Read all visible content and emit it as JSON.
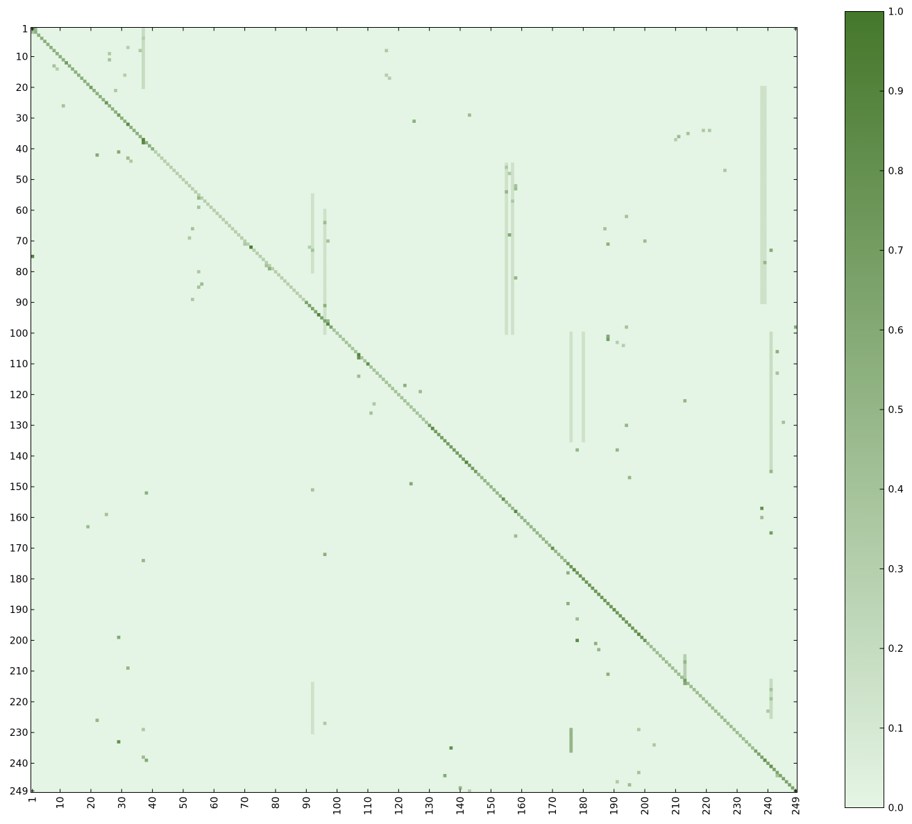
{
  "chart_data": {
    "type": "heatmap",
    "title": "",
    "xlabel": "",
    "ylabel": "",
    "n": 249,
    "x_ticks": [
      1,
      10,
      20,
      30,
      40,
      50,
      60,
      70,
      80,
      90,
      100,
      110,
      120,
      130,
      140,
      150,
      160,
      170,
      180,
      190,
      200,
      210,
      220,
      230,
      240,
      249
    ],
    "y_ticks": [
      1,
      10,
      20,
      30,
      40,
      50,
      60,
      70,
      80,
      90,
      100,
      110,
      120,
      130,
      140,
      150,
      160,
      170,
      180,
      190,
      200,
      210,
      220,
      230,
      240,
      249
    ],
    "x_tick_labels": [
      "1",
      "10",
      "20",
      "30",
      "40",
      "50",
      "60",
      "70",
      "80",
      "90",
      "100",
      "110",
      "120",
      "130",
      "140",
      "150",
      "160",
      "170",
      "180",
      "190",
      "200",
      "210",
      "220",
      "230",
      "240",
      "249"
    ],
    "y_tick_labels": [
      "1",
      "10",
      "20",
      "30",
      "40",
      "50",
      "60",
      "70",
      "80",
      "90",
      "100",
      "110",
      "120",
      "130",
      "140",
      "150",
      "160",
      "170",
      "180",
      "190",
      "200",
      "210",
      "220",
      "230",
      "240",
      "249"
    ],
    "colorbar": {
      "min": 0.0,
      "max": 1.0,
      "ticks": [
        0.0,
        0.1,
        0.2,
        0.3,
        0.4,
        0.5,
        0.6,
        0.7,
        0.8,
        0.9,
        1.0
      ],
      "tick_labels": [
        "0.0",
        "0.1",
        "0.2",
        "0.3",
        "0.4",
        "0.5",
        "0.6",
        "0.7",
        "0.8",
        "0.9",
        "1.0"
      ],
      "color_low": "#e5f5e5",
      "color_high": "#44772a"
    },
    "diagonal": [
      {
        "from": 1,
        "to": 40,
        "value": 0.55
      },
      {
        "from": 41,
        "to": 89,
        "value": 0.3
      },
      {
        "from": 90,
        "to": 98,
        "value": 0.65
      },
      {
        "from": 99,
        "to": 129,
        "value": 0.4
      },
      {
        "from": 130,
        "to": 145,
        "value": 0.7
      },
      {
        "from": 146,
        "to": 174,
        "value": 0.5
      },
      {
        "from": 175,
        "to": 200,
        "value": 0.75
      },
      {
        "from": 201,
        "to": 235,
        "value": 0.45
      },
      {
        "from": 236,
        "to": 249,
        "value": 0.65
      }
    ],
    "cells": [
      [
        1,
        2,
        0.5
      ],
      [
        2,
        1,
        0.4
      ],
      [
        12,
        12,
        0.7
      ],
      [
        20,
        20,
        0.7
      ],
      [
        25,
        25,
        0.75
      ],
      [
        29,
        29,
        0.7
      ],
      [
        32,
        32,
        0.85
      ],
      [
        37,
        37,
        0.9
      ],
      [
        38,
        37,
        0.85
      ],
      [
        72,
        72,
        0.95
      ],
      [
        75,
        1,
        0.9
      ],
      [
        94,
        94,
        0.9
      ],
      [
        97,
        97,
        0.85
      ],
      [
        107,
        107,
        0.9
      ],
      [
        108,
        107,
        0.8
      ],
      [
        110,
        110,
        0.8
      ],
      [
        131,
        131,
        0.85
      ],
      [
        142,
        142,
        0.9
      ],
      [
        154,
        154,
        0.8
      ],
      [
        158,
        158,
        0.85
      ],
      [
        170,
        170,
        0.8
      ],
      [
        177,
        177,
        0.85
      ],
      [
        190,
        190,
        0.8
      ],
      [
        198,
        198,
        0.85
      ],
      [
        213,
        213,
        0.7
      ],
      [
        239,
        239,
        0.8
      ],
      [
        241,
        241,
        0.8
      ],
      [
        11,
        26,
        0.4
      ],
      [
        26,
        11,
        0.4
      ],
      [
        21,
        28,
        0.35
      ],
      [
        42,
        22,
        0.6
      ],
      [
        41,
        29,
        0.6
      ],
      [
        43,
        32,
        0.45
      ],
      [
        44,
        33,
        0.35
      ],
      [
        31,
        125,
        0.55
      ],
      [
        29,
        143,
        0.45
      ],
      [
        36,
        211,
        0.45
      ],
      [
        34,
        219,
        0.35
      ],
      [
        34,
        221,
        0.35
      ],
      [
        37,
        210,
        0.3
      ],
      [
        72,
        91,
        0.3
      ],
      [
        73,
        92,
        0.4
      ],
      [
        64,
        96,
        0.45
      ],
      [
        70,
        97,
        0.4
      ],
      [
        91,
        96,
        0.55
      ],
      [
        96,
        97,
        0.5
      ],
      [
        102,
        188,
        0.7
      ],
      [
        101,
        188,
        0.6
      ],
      [
        98,
        194,
        0.4
      ],
      [
        114,
        107,
        0.45
      ],
      [
        126,
        111,
        0.4
      ],
      [
        123,
        112,
        0.35
      ],
      [
        119,
        127,
        0.45
      ],
      [
        117,
        122,
        0.55
      ],
      [
        149,
        124,
        0.6
      ],
      [
        152,
        38,
        0.55
      ],
      [
        151,
        92,
        0.4
      ],
      [
        54,
        155,
        0.5
      ],
      [
        68,
        156,
        0.6
      ],
      [
        53,
        158,
        0.45
      ],
      [
        82,
        158,
        0.5
      ],
      [
        166,
        158,
        0.45
      ],
      [
        157,
        238,
        0.8
      ],
      [
        165,
        241,
        0.7
      ],
      [
        160,
        238,
        0.45
      ],
      [
        172,
        96,
        0.55
      ],
      [
        174,
        37,
        0.5
      ],
      [
        163,
        19,
        0.45
      ],
      [
        159,
        25,
        0.4
      ],
      [
        199,
        29,
        0.6
      ],
      [
        209,
        32,
        0.5
      ],
      [
        233,
        29,
        0.8
      ],
      [
        235,
        137,
        0.8
      ],
      [
        244,
        135,
        0.6
      ],
      [
        248,
        140,
        0.5
      ],
      [
        226,
        22,
        0.5
      ],
      [
        239,
        38,
        0.6
      ],
      [
        238,
        37,
        0.45
      ],
      [
        200,
        178,
        0.85
      ],
      [
        201,
        184,
        0.55
      ],
      [
        203,
        185,
        0.5
      ],
      [
        211,
        188,
        0.55
      ],
      [
        207,
        213,
        0.5
      ],
      [
        214,
        213,
        0.6
      ],
      [
        122,
        213,
        0.5
      ],
      [
        138,
        178,
        0.5
      ],
      [
        138,
        191,
        0.5
      ],
      [
        130,
        194,
        0.5
      ],
      [
        147,
        195,
        0.5
      ],
      [
        178,
        175,
        0.55
      ],
      [
        188,
        175,
        0.55
      ],
      [
        193,
        178,
        0.45
      ],
      [
        73,
        241,
        0.6
      ],
      [
        77,
        239,
        0.5
      ],
      [
        145,
        241,
        0.5
      ],
      [
        106,
        243,
        0.55
      ],
      [
        113,
        243,
        0.4
      ],
      [
        129,
        245,
        0.4
      ],
      [
        98,
        249,
        0.6
      ],
      [
        47,
        226,
        0.35
      ],
      [
        70,
        200,
        0.45
      ],
      [
        71,
        188,
        0.55
      ],
      [
        66,
        187,
        0.4
      ],
      [
        62,
        194,
        0.4
      ],
      [
        35,
        214,
        0.4
      ],
      [
        103,
        191,
        0.3
      ],
      [
        104,
        193,
        0.3
      ],
      [
        216,
        241,
        0.4
      ],
      [
        219,
        241,
        0.4
      ],
      [
        223,
        240,
        0.35
      ],
      [
        229,
        37,
        0.35
      ],
      [
        227,
        96,
        0.35
      ],
      [
        234,
        203,
        0.35
      ],
      [
        229,
        198,
        0.35
      ],
      [
        246,
        191,
        0.35
      ],
      [
        243,
        198,
        0.4
      ],
      [
        247,
        195,
        0.45
      ],
      [
        244,
        243,
        0.4
      ],
      [
        249,
        143,
        0.3
      ],
      [
        85,
        55,
        0.4
      ],
      [
        80,
        55,
        0.35
      ],
      [
        84,
        56,
        0.45
      ],
      [
        89,
        53,
        0.35
      ],
      [
        56,
        55,
        0.5
      ],
      [
        59,
        55,
        0.4
      ],
      [
        79,
        78,
        0.55
      ],
      [
        78,
        77,
        0.4
      ],
      [
        71,
        70,
        0.35
      ],
      [
        69,
        52,
        0.35
      ],
      [
        66,
        53,
        0.4
      ],
      [
        48,
        156,
        0.35
      ],
      [
        46,
        155,
        0.35
      ],
      [
        52,
        158,
        0.4
      ],
      [
        57,
        157,
        0.35
      ],
      [
        13,
        8,
        0.4
      ],
      [
        14,
        9,
        0.3
      ],
      [
        9,
        26,
        0.35
      ],
      [
        16,
        31,
        0.3
      ],
      [
        7,
        32,
        0.3
      ],
      [
        8,
        36,
        0.35
      ],
      [
        4,
        37,
        0.3
      ],
      [
        8,
        116,
        0.35
      ],
      [
        16,
        116,
        0.3
      ],
      [
        17,
        117,
        0.3
      ]
    ],
    "columns": [
      {
        "col": 37,
        "from": 1,
        "to": 20,
        "value": 0.2
      },
      {
        "col": 92,
        "from": 55,
        "to": 80,
        "value": 0.15
      },
      {
        "col": 96,
        "from": 60,
        "to": 100,
        "value": 0.15
      },
      {
        "col": 155,
        "from": 45,
        "to": 100,
        "value": 0.15
      },
      {
        "col": 157,
        "from": 45,
        "to": 100,
        "value": 0.15
      },
      {
        "col": 176,
        "from": 100,
        "to": 135,
        "value": 0.15
      },
      {
        "col": 180,
        "from": 100,
        "to": 135,
        "value": 0.15
      },
      {
        "col": 238,
        "from": 20,
        "to": 90,
        "value": 0.15
      },
      {
        "col": 239,
        "from": 20,
        "to": 90,
        "value": 0.15
      },
      {
        "col": 241,
        "from": 100,
        "to": 145,
        "value": 0.18
      },
      {
        "col": 176,
        "from": 229,
        "to": 236,
        "value": 0.5
      },
      {
        "col": 92,
        "from": 214,
        "to": 230,
        "value": 0.15
      },
      {
        "col": 241,
        "from": 213,
        "to": 225,
        "value": 0.2
      },
      {
        "col": 213,
        "from": 205,
        "to": 212,
        "value": 0.3
      }
    ]
  }
}
